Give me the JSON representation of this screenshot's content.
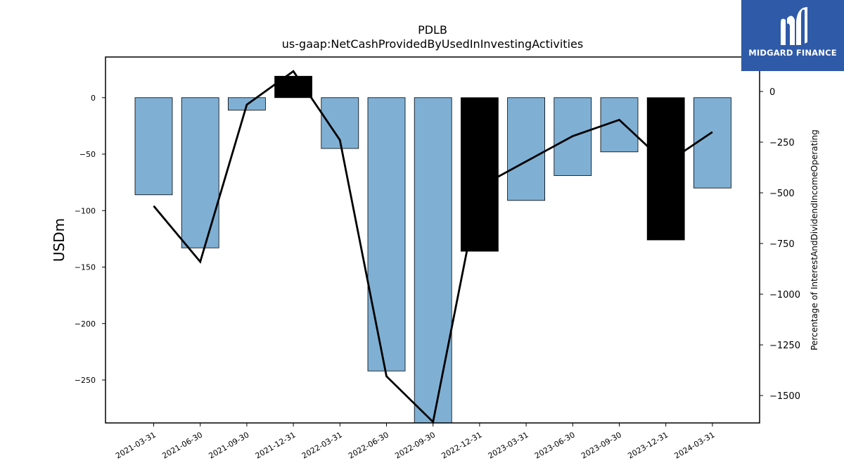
{
  "chart_data": {
    "type": "bar",
    "title": "PDLB",
    "subtitle": "us-gaap:NetCashProvidedByUsedInInvestingActivities",
    "ylabel": "USDm",
    "y2label": "Percentage of InterestAndDividendIncomeOperating",
    "categories": [
      "2021-03-31",
      "2021-06-30",
      "2021-09-30",
      "2021-12-31",
      "2022-03-31",
      "2022-06-30",
      "2022-09-30",
      "2022-12-31",
      "2023-03-31",
      "2023-06-30",
      "2023-09-30",
      "2023-12-31",
      "2024-03-31"
    ],
    "ylim": [
      -288,
      36
    ],
    "y2lim": [
      -1635,
      170
    ],
    "yticks": [
      0,
      -50,
      -100,
      -150,
      -200,
      -250
    ],
    "y2ticks": [
      0,
      -250,
      -500,
      -750,
      -1000,
      -1250,
      -1500
    ],
    "grid": false,
    "series": [
      {
        "kind": "bar",
        "axis": "left",
        "values": [
          -86,
          -133,
          -11,
          19,
          -45,
          -242,
          -288,
          -136,
          -91,
          -69,
          -48,
          -126,
          -80
        ],
        "highlight": [
          false,
          false,
          false,
          true,
          false,
          false,
          false,
          true,
          false,
          false,
          false,
          true,
          false
        ],
        "colors": {
          "normal": "#7fb0d4",
          "highlight": "#000000",
          "edge": "#000000"
        }
      },
      {
        "kind": "line",
        "axis": "right",
        "values": [
          -565,
          -840,
          -65,
          100,
          -240,
          -1405,
          -1630,
          -470,
          -345,
          -220,
          -140,
          -355,
          -200
        ],
        "color": "#000000"
      }
    ]
  },
  "brand": {
    "name": "MIDGARD FINANCE",
    "icon": "midgard-m-icon",
    "color": "#2f5aa8"
  }
}
